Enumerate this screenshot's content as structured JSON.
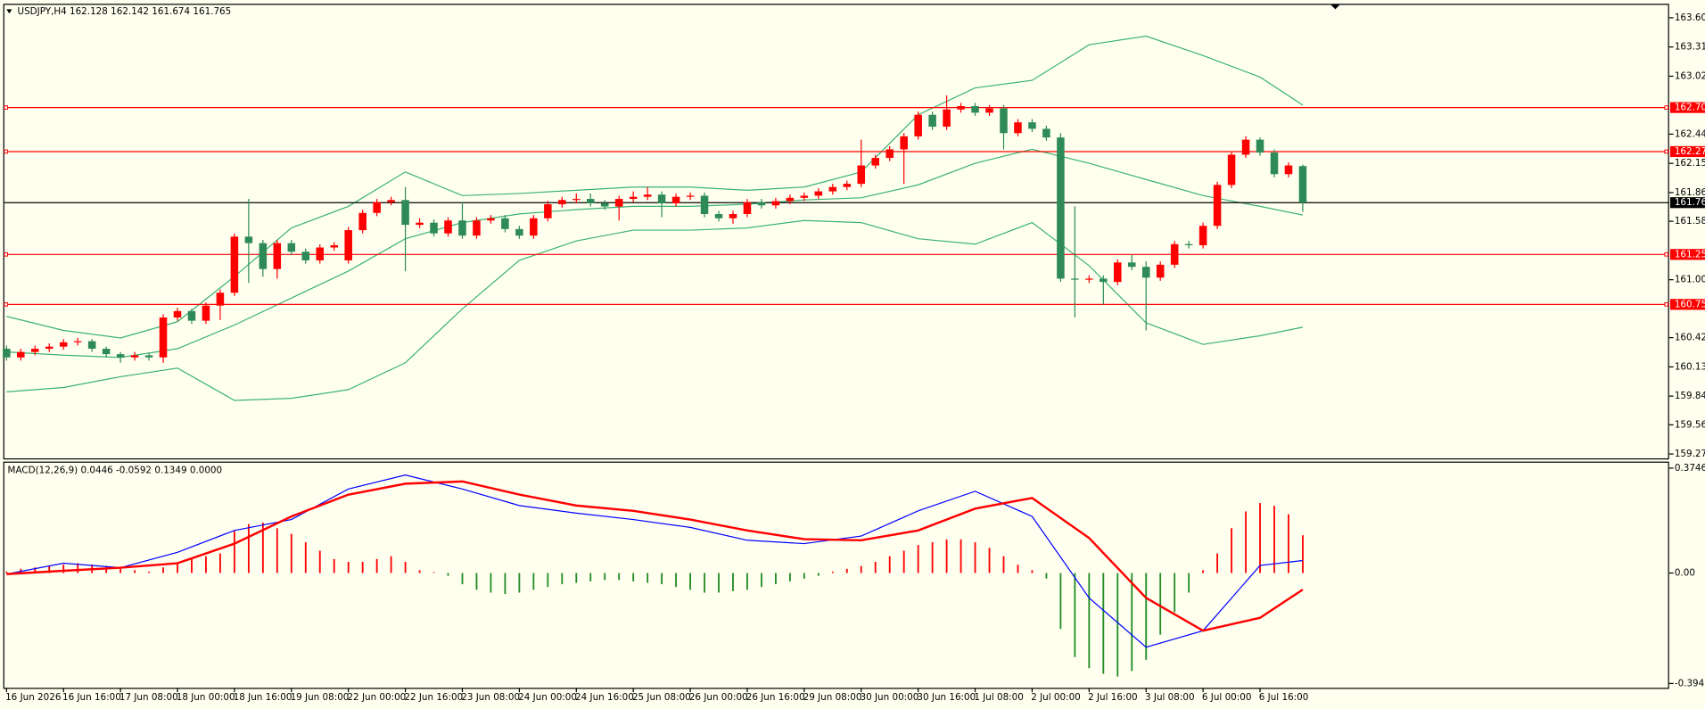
{
  "chart_data": [
    {
      "type": "candlestick",
      "title": "USDJPY,H4  162.128 162.142 161.674 161.765",
      "categories": [
        "16 Jun 2026",
        null,
        null,
        null,
        "16 Jun 16:00",
        null,
        null,
        null,
        "17 Jun 08:00",
        null,
        null,
        null,
        "18 Jun 00:00",
        null,
        null,
        null,
        "18 Jun 16:00",
        null,
        null,
        null,
        "19 Jun 08:00",
        null,
        null,
        null,
        "22 Jun 00:00",
        null,
        null,
        null,
        "22 Jun 16:00",
        null,
        null,
        null,
        "23 Jun 08:00",
        null,
        null,
        null,
        "24 Jun 00:00",
        null,
        null,
        null,
        "24 Jun 16:00",
        null,
        null,
        null,
        "25 Jun 08:00",
        null,
        null,
        null,
        "26 Jun 00:00",
        null,
        null,
        null,
        "26 Jun 16:00",
        null,
        null,
        null,
        "29 Jun 08:00",
        null,
        null,
        null,
        "30 Jun 00:00",
        null,
        null,
        null,
        "30 Jun 16:00",
        null,
        null,
        null,
        "1 Jul 08:00",
        null,
        null,
        null,
        "2 Jul 00:00",
        null,
        null,
        null,
        "2 Jul 16:00",
        null,
        null,
        null,
        "3 Jul 08:00",
        null,
        null,
        null,
        "6 Jul 00:00",
        null,
        null,
        null,
        "6 Jul 16:00",
        null,
        null,
        null
      ],
      "open": [
        160.315,
        160.229,
        160.283,
        160.315,
        160.336,
        160.379,
        160.39,
        160.315,
        160.261,
        160.229,
        160.25,
        160.229,
        160.625,
        160.689,
        160.593,
        160.743,
        160.871,
        161.428,
        161.363,
        161.106,
        161.363,
        161.278,
        161.192,
        161.32,
        161.192,
        161.492,
        161.663,
        161.77,
        161.791,
        161.545,
        161.566,
        161.46,
        161.588,
        161.438,
        161.588,
        161.61,
        161.503,
        161.438,
        161.61,
        161.749,
        161.791,
        161.802,
        161.759,
        161.727,
        161.802,
        161.823,
        161.845,
        161.759,
        161.823,
        161.834,
        161.652,
        161.61,
        161.652,
        161.77,
        161.738,
        161.78,
        161.813,
        161.834,
        161.877,
        161.92,
        161.952,
        162.134,
        162.209,
        162.294,
        162.423,
        162.637,
        162.519,
        162.69,
        162.723,
        162.658,
        162.701,
        162.455,
        162.562,
        162.498,
        162.412,
        161.011,
        161.0,
        161.011,
        160.978,
        161.171,
        161.128,
        161.021,
        161.149,
        161.353,
        161.342,
        161.535,
        161.941,
        162.241,
        162.39,
        162.262,
        162.048,
        162.128
      ],
      "high": [
        160.347,
        160.315,
        160.347,
        160.368,
        160.411,
        160.422,
        160.411,
        160.336,
        160.283,
        160.283,
        160.272,
        160.657,
        160.721,
        160.711,
        160.775,
        160.903,
        161.46,
        161.802,
        161.395,
        161.395,
        161.395,
        161.31,
        161.352,
        161.374,
        161.524,
        161.695,
        161.802,
        161.823,
        161.92,
        161.61,
        161.598,
        161.62,
        161.77,
        161.62,
        161.642,
        161.642,
        161.535,
        161.642,
        161.781,
        161.823,
        161.856,
        161.856,
        161.791,
        161.834,
        161.877,
        161.92,
        161.877,
        161.856,
        161.866,
        161.866,
        161.684,
        161.684,
        161.802,
        161.802,
        161.813,
        161.845,
        161.866,
        161.909,
        161.952,
        161.984,
        162.39,
        162.241,
        162.326,
        162.455,
        162.669,
        162.669,
        162.83,
        162.755,
        162.755,
        162.733,
        162.733,
        162.594,
        162.594,
        162.53,
        162.455,
        161.728,
        161.043,
        161.043,
        161.203,
        161.246,
        161.182,
        161.181,
        161.385,
        161.385,
        161.567,
        161.973,
        162.273,
        162.422,
        162.412,
        162.294,
        162.166,
        162.142
      ],
      "low": [
        160.197,
        160.197,
        160.251,
        160.283,
        160.304,
        160.347,
        160.283,
        160.229,
        160.175,
        160.197,
        160.197,
        160.175,
        160.593,
        160.561,
        160.561,
        160.6,
        160.839,
        160.968,
        161.03,
        161.01,
        161.246,
        161.16,
        161.16,
        161.288,
        161.16,
        161.46,
        161.631,
        161.738,
        161.085,
        161.513,
        161.428,
        161.428,
        161.406,
        161.406,
        161.556,
        161.47,
        161.406,
        161.406,
        161.578,
        161.717,
        161.759,
        161.727,
        161.695,
        161.588,
        161.77,
        161.791,
        161.62,
        161.727,
        161.791,
        161.62,
        161.578,
        161.556,
        161.62,
        161.706,
        161.706,
        161.749,
        161.781,
        161.802,
        161.845,
        161.888,
        161.92,
        162.102,
        162.177,
        161.952,
        162.391,
        162.487,
        162.487,
        162.658,
        162.626,
        162.626,
        162.294,
        162.423,
        162.466,
        162.38,
        160.979,
        160.625,
        160.968,
        160.754,
        160.946,
        161.096,
        160.497,
        160.989,
        161.117,
        161.31,
        161.31,
        161.503,
        161.909,
        162.209,
        162.23,
        162.016,
        162.016,
        161.674
      ],
      "close": [
        160.229,
        160.283,
        160.315,
        160.336,
        160.379,
        160.39,
        160.315,
        160.261,
        160.229,
        160.25,
        160.229,
        160.625,
        160.689,
        160.593,
        160.743,
        160.871,
        161.428,
        161.363,
        161.106,
        161.363,
        161.278,
        161.192,
        161.32,
        161.342,
        161.492,
        161.663,
        161.77,
        161.791,
        161.545,
        161.566,
        161.46,
        161.588,
        161.438,
        161.588,
        161.61,
        161.503,
        161.438,
        161.61,
        161.749,
        161.791,
        161.802,
        161.759,
        161.727,
        161.802,
        161.823,
        161.845,
        161.759,
        161.823,
        161.834,
        161.652,
        161.61,
        161.652,
        161.77,
        161.738,
        161.78,
        161.813,
        161.834,
        161.877,
        161.92,
        161.952,
        162.134,
        162.209,
        162.294,
        162.423,
        162.637,
        162.519,
        162.69,
        162.723,
        162.658,
        162.701,
        162.455,
        162.562,
        162.498,
        162.412,
        161.011,
        161.0,
        161.011,
        160.978,
        161.171,
        161.128,
        161.021,
        161.149,
        161.353,
        161.342,
        161.535,
        161.941,
        162.241,
        162.39,
        162.262,
        162.048,
        162.134,
        161.765
      ],
      "up_color": "#ff0000",
      "down_color": "#2e8b57",
      "series": [
        {
          "color": "#3cb371",
          "x": [
            0,
            4,
            8,
            12,
            16,
            20,
            24,
            28,
            32,
            36,
            40,
            44,
            48,
            52,
            56,
            60,
            64,
            68,
            72,
            76,
            80,
            84,
            88,
            91
          ],
          "values": [
            160.636,
            160.497,
            160.422,
            160.583,
            161.032,
            161.514,
            161.728,
            162.07,
            161.835,
            161.856,
            161.888,
            161.92,
            161.92,
            161.888,
            161.92,
            162.07,
            162.637,
            162.904,
            162.979,
            163.332,
            163.418,
            163.225,
            163.011,
            162.733
          ]
        },
        {
          "color": "#3cb371",
          "x": [
            0,
            4,
            8,
            12,
            16,
            20,
            24,
            28,
            32,
            36,
            40,
            44,
            48,
            52,
            56,
            60,
            64,
            68,
            72,
            76,
            80,
            84,
            88,
            91
          ],
          "values": [
            160.283,
            160.251,
            160.229,
            160.315,
            160.55,
            160.818,
            161.086,
            161.407,
            161.567,
            161.653,
            161.696,
            161.728,
            161.728,
            161.749,
            161.792,
            161.813,
            161.942,
            162.156,
            162.295,
            162.156,
            161.995,
            161.835,
            161.728,
            161.642
          ]
        },
        {
          "color": "#3cb371",
          "x": [
            0,
            4,
            8,
            12,
            16,
            20,
            24,
            28,
            32,
            36,
            40,
            44,
            48,
            52,
            56,
            60,
            64,
            68,
            72,
            76,
            80,
            84,
            88,
            91
          ],
          "values": [
            159.887,
            159.93,
            160.037,
            160.123,
            159.802,
            159.823,
            159.909,
            160.176,
            160.711,
            161.192,
            161.385,
            161.492,
            161.492,
            161.514,
            161.588,
            161.567,
            161.407,
            161.353,
            161.567,
            161.139,
            160.572,
            160.358,
            160.444,
            160.529
          ]
        }
      ],
      "levels": [
        162.709,
        162.272,
        161.251,
        160.755
      ],
      "level_color": "#ff0000",
      "price_line": 161.765,
      "price_line_color": "#000000",
      "ylim": [
        159.227,
        163.728
      ],
      "yticks": [
        {
          "value": 163.6,
          "label": "163.600"
        },
        {
          "value": 163.31,
          "label": "163.310"
        },
        {
          "value": 163.02,
          "label": "163.020"
        },
        {
          "value": 162.445,
          "label": "162.445"
        },
        {
          "value": 162.155,
          "label": "162.155"
        },
        {
          "value": 161.865,
          "label": "161.865"
        },
        {
          "value": 161.58,
          "label": "161.580"
        },
        {
          "value": 161.0,
          "label": "161.000"
        },
        {
          "value": 160.425,
          "label": "160.425"
        },
        {
          "value": 160.135,
          "label": "160.135"
        },
        {
          "value": 159.845,
          "label": "159.845"
        },
        {
          "value": 159.56,
          "label": "159.560"
        },
        {
          "value": 159.27,
          "label": "159.270"
        }
      ],
      "grid": false
    },
    {
      "type": "macd",
      "title": "MACD(12,26,9) 0.0446 -0.0592 0.1349 0.0000",
      "values": [
        0.005,
        0.015,
        0.02,
        0.025,
        0.03,
        0.035,
        0.03,
        0.025,
        0.015,
        0.01,
        0.005,
        0.02,
        0.035,
        0.05,
        0.06,
        0.07,
        0.15,
        0.175,
        0.18,
        0.16,
        0.14,
        0.11,
        0.08,
        0.05,
        0.04,
        0.04,
        0.05,
        0.06,
        0.04,
        0.01,
        0.003,
        -0.01,
        -0.04,
        -0.06,
        -0.07,
        -0.075,
        -0.07,
        -0.06,
        -0.05,
        -0.04,
        -0.035,
        -0.03,
        -0.025,
        -0.025,
        -0.03,
        -0.035,
        -0.04,
        -0.05,
        -0.06,
        -0.07,
        -0.07,
        -0.065,
        -0.06,
        -0.05,
        -0.04,
        -0.03,
        -0.02,
        -0.01,
        0.005,
        0.015,
        0.025,
        0.04,
        0.06,
        0.08,
        0.1,
        0.11,
        0.12,
        0.12,
        0.11,
        0.09,
        0.06,
        0.03,
        0.01,
        -0.02,
        -0.2,
        -0.3,
        -0.34,
        -0.36,
        -0.37,
        -0.35,
        -0.31,
        -0.22,
        -0.14,
        -0.07,
        0.01,
        0.07,
        0.16,
        0.22,
        0.25,
        0.24,
        0.21,
        0.1349
      ],
      "up_color": "#ff0000",
      "down_color": "#228b22",
      "series": [
        {
          "color": "#0000ff",
          "width": 1,
          "x": [
            0,
            4,
            8,
            12,
            16,
            20,
            24,
            28,
            32,
            36,
            40,
            44,
            48,
            52,
            56,
            60,
            64,
            68,
            72,
            76,
            80,
            84,
            88,
            91
          ],
          "values": [
            -0.004,
            0.035,
            0.019,
            0.074,
            0.152,
            0.191,
            0.3,
            0.35,
            0.3,
            0.241,
            0.214,
            0.191,
            0.163,
            0.117,
            0.105,
            0.132,
            0.222,
            0.292,
            0.202,
            -0.089,
            -0.265,
            -0.206,
            0.027,
            0.0446
          ]
        },
        {
          "color": "#ff0000",
          "width": 2,
          "x": [
            0,
            4,
            8,
            12,
            16,
            20,
            24,
            28,
            32,
            36,
            40,
            44,
            48,
            52,
            56,
            60,
            64,
            68,
            72,
            76,
            80,
            84,
            88,
            91
          ],
          "values": [
            -0.004,
            0.008,
            0.019,
            0.035,
            0.105,
            0.202,
            0.28,
            0.319,
            0.327,
            0.28,
            0.241,
            0.222,
            0.191,
            0.152,
            0.121,
            0.117,
            0.152,
            0.23,
            0.268,
            0.125,
            -0.089,
            -0.206,
            -0.16,
            -0.0592
          ]
        }
      ],
      "ylim": [
        -0.41,
        0.394
      ],
      "yticks": [
        0.3746,
        {
          "value": 0,
          "label": "0.00"
        },
        -0.3945
      ]
    }
  ]
}
